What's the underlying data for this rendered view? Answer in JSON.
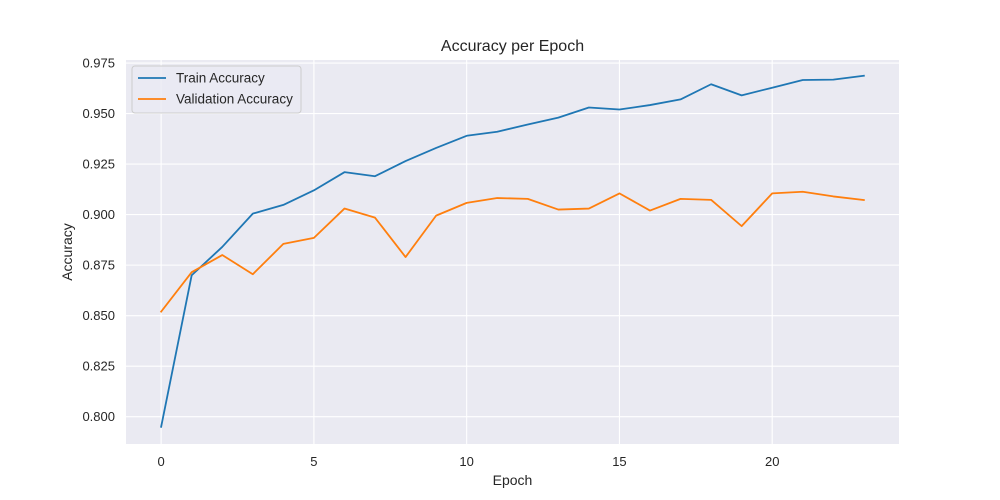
{
  "chart_data": {
    "type": "line",
    "title": "Accuracy per Epoch",
    "xlabel": "Epoch",
    "ylabel": "Accuracy",
    "xlim": [
      -1.15,
      24.15
    ],
    "ylim": [
      0.7865,
      0.9765
    ],
    "xticks": [
      0,
      5,
      10,
      15,
      20
    ],
    "yticks": [
      0.8,
      0.825,
      0.85,
      0.875,
      0.9,
      0.925,
      0.95,
      0.975
    ],
    "ytick_labels": [
      "0.800",
      "0.825",
      "0.850",
      "0.875",
      "0.900",
      "0.925",
      "0.950",
      "0.975"
    ],
    "grid": true,
    "legend_position": "top-left",
    "x": [
      0,
      1,
      2,
      3,
      4,
      5,
      6,
      7,
      8,
      9,
      10,
      11,
      12,
      13,
      14,
      15,
      16,
      17,
      18,
      19,
      20,
      21,
      22,
      23
    ],
    "series": [
      {
        "name": "Train Accuracy",
        "color": "#1f77b4",
        "values": [
          0.795,
          0.87,
          0.884,
          0.9005,
          0.9048,
          0.912,
          0.921,
          0.919,
          0.9265,
          0.933,
          0.939,
          0.941,
          0.9446,
          0.948,
          0.953,
          0.952,
          0.9542,
          0.957,
          0.9645,
          0.959,
          0.9628,
          0.9666,
          0.9668,
          0.9687
        ]
      },
      {
        "name": "Validation Accuracy",
        "color": "#ff7f0e",
        "values": [
          0.852,
          0.8715,
          0.88,
          0.8705,
          0.8855,
          0.8885,
          0.903,
          0.8985,
          0.879,
          0.8995,
          0.9058,
          0.9082,
          0.9078,
          0.9025,
          0.903,
          0.9105,
          0.902,
          0.9078,
          0.9073,
          0.8943,
          0.9105,
          0.9113,
          0.909,
          0.9072
        ]
      }
    ]
  }
}
